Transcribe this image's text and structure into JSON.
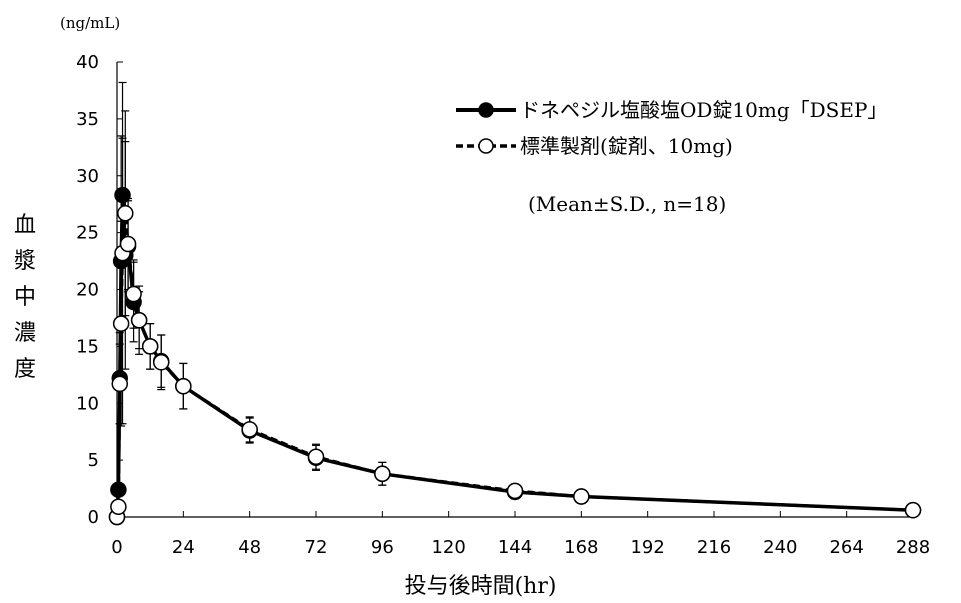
{
  "chart_data": {
    "type": "line",
    "unit_label": "(ng/mL)",
    "ylabel_chars": [
      "血",
      "漿",
      "中",
      "濃",
      "度"
    ],
    "xlabel": "投与後時間(hr)",
    "xlim": [
      0,
      288
    ],
    "ylim": [
      0,
      40
    ],
    "x_ticks": [
      0,
      24,
      48,
      72,
      96,
      120,
      144,
      168,
      192,
      216,
      240,
      264,
      288
    ],
    "y_ticks": [
      0,
      5,
      10,
      15,
      20,
      25,
      30,
      35,
      40
    ],
    "legend_note": "(Mean±S.D., n=18)",
    "series": [
      {
        "name": "ドネペジル塩酸塩OD錠10mg「DSEP」",
        "style": "solid",
        "marker": "filled-circle",
        "color": "#000000",
        "points": [
          {
            "x": 0,
            "y": 0,
            "sd": 0
          },
          {
            "x": 0.5,
            "y": 2.4,
            "sd": 0
          },
          {
            "x": 1,
            "y": 12.2,
            "sd": 4
          },
          {
            "x": 1.5,
            "y": 22.5,
            "sd": 11
          },
          {
            "x": 2,
            "y": 28.3,
            "sd": 5
          },
          {
            "x": 3,
            "y": 23,
            "sd": 10
          },
          {
            "x": 4,
            "y": 23.8,
            "sd": 4
          },
          {
            "x": 6,
            "y": 18.9,
            "sd": 3.5
          },
          {
            "x": 8,
            "y": 17.3,
            "sd": 2.5
          },
          {
            "x": 12,
            "y": 15,
            "sd": 2
          },
          {
            "x": 16,
            "y": 13.7,
            "sd": 2.3
          },
          {
            "x": 24,
            "y": 11.5,
            "sd": 2
          },
          {
            "x": 48,
            "y": 7.6,
            "sd": 1.1
          },
          {
            "x": 72,
            "y": 5.2,
            "sd": 1.1
          },
          {
            "x": 96,
            "y": 3.8,
            "sd": 1
          },
          {
            "x": 144,
            "y": 2.2,
            "sd": 0.6
          },
          {
            "x": 168,
            "y": 1.8,
            "sd": 0
          },
          {
            "x": 288,
            "y": 0.6,
            "sd": 0
          }
        ]
      },
      {
        "name": "標準製剤(錠剤、10mg)",
        "style": "dashed",
        "marker": "open-circle",
        "color": "#000000",
        "points": [
          {
            "x": 0,
            "y": 0,
            "sd": 0
          },
          {
            "x": 0.5,
            "y": 0.9,
            "sd": 0
          },
          {
            "x": 1,
            "y": 11.7,
            "sd": 3.5
          },
          {
            "x": 1.5,
            "y": 17,
            "sd": 9
          },
          {
            "x": 2,
            "y": 23.2,
            "sd": 15
          },
          {
            "x": 3,
            "y": 26.7,
            "sd": 9
          },
          {
            "x": 4,
            "y": 24,
            "sd": 4
          },
          {
            "x": 6,
            "y": 19.6,
            "sd": 3
          },
          {
            "x": 8,
            "y": 17.3,
            "sd": 3
          },
          {
            "x": 12,
            "y": 15,
            "sd": 2
          },
          {
            "x": 16,
            "y": 13.6,
            "sd": 2.4
          },
          {
            "x": 24,
            "y": 11.5,
            "sd": 2
          },
          {
            "x": 48,
            "y": 7.7,
            "sd": 1.1
          },
          {
            "x": 72,
            "y": 5.3,
            "sd": 1.1
          },
          {
            "x": 96,
            "y": 3.8,
            "sd": 1
          },
          {
            "x": 144,
            "y": 2.3,
            "sd": 0.6
          },
          {
            "x": 168,
            "y": 1.8,
            "sd": 0
          },
          {
            "x": 288,
            "y": 0.6,
            "sd": 0
          }
        ]
      }
    ]
  }
}
